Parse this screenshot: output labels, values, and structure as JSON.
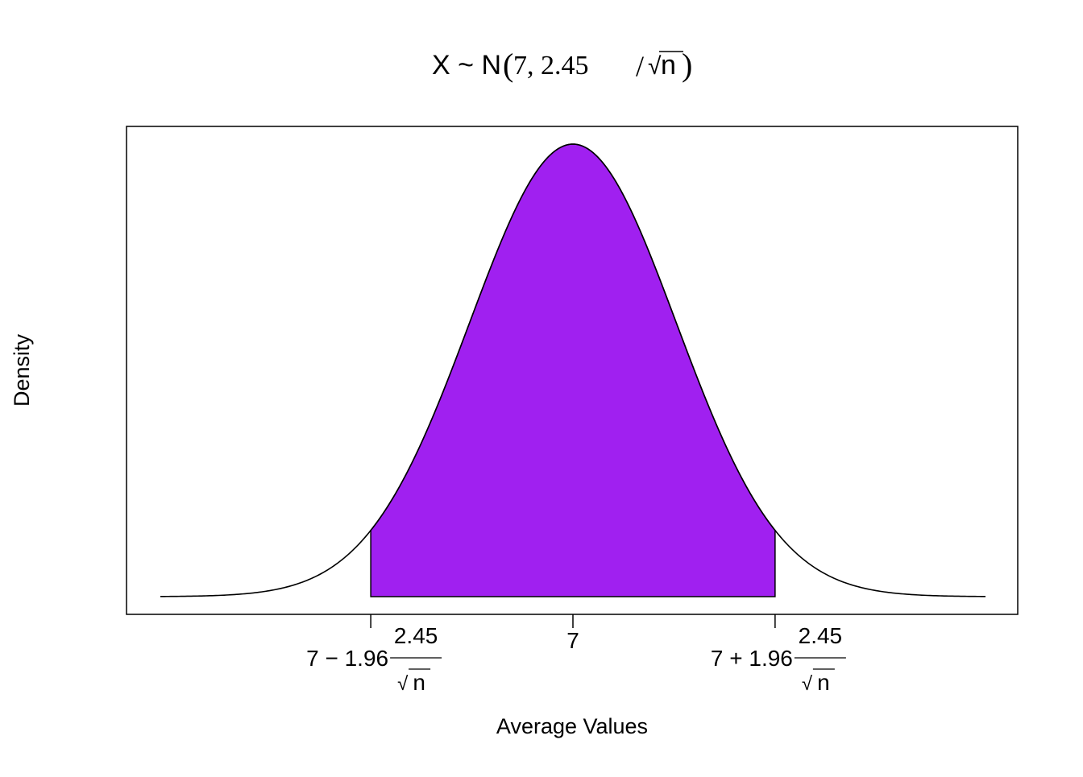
{
  "chart_data": {
    "type": "area",
    "title": {
      "lhs": "X ~ N",
      "args": "7, 2.45",
      "sqrt_sign": "√",
      "sqrt_arg": "n"
    },
    "xlabel": "Average Values",
    "ylabel": "Density",
    "distribution": {
      "family": "normal",
      "mean": 7,
      "sd_symbol": "2.45/√n",
      "shape_sd": 1.0
    },
    "x_range_sd": [
      -4,
      4
    ],
    "shaded_region_sd": [
      -1.96,
      1.96
    ],
    "shade_color": "#A020F0",
    "curve_color": "#000000",
    "ticks": [
      {
        "z": -1.96,
        "prefix": "7 − 1.96",
        "numerator": "2.45",
        "sqrt_sign": "√",
        "den": "n"
      },
      {
        "z": 0,
        "prefix": "7",
        "numerator": "",
        "sqrt_sign": "",
        "den": ""
      },
      {
        "z": 1.96,
        "prefix": "7 + 1.96",
        "numerator": "2.45",
        "sqrt_sign": "√",
        "den": "n"
      }
    ],
    "yticks_shown": false,
    "grid": false
  }
}
